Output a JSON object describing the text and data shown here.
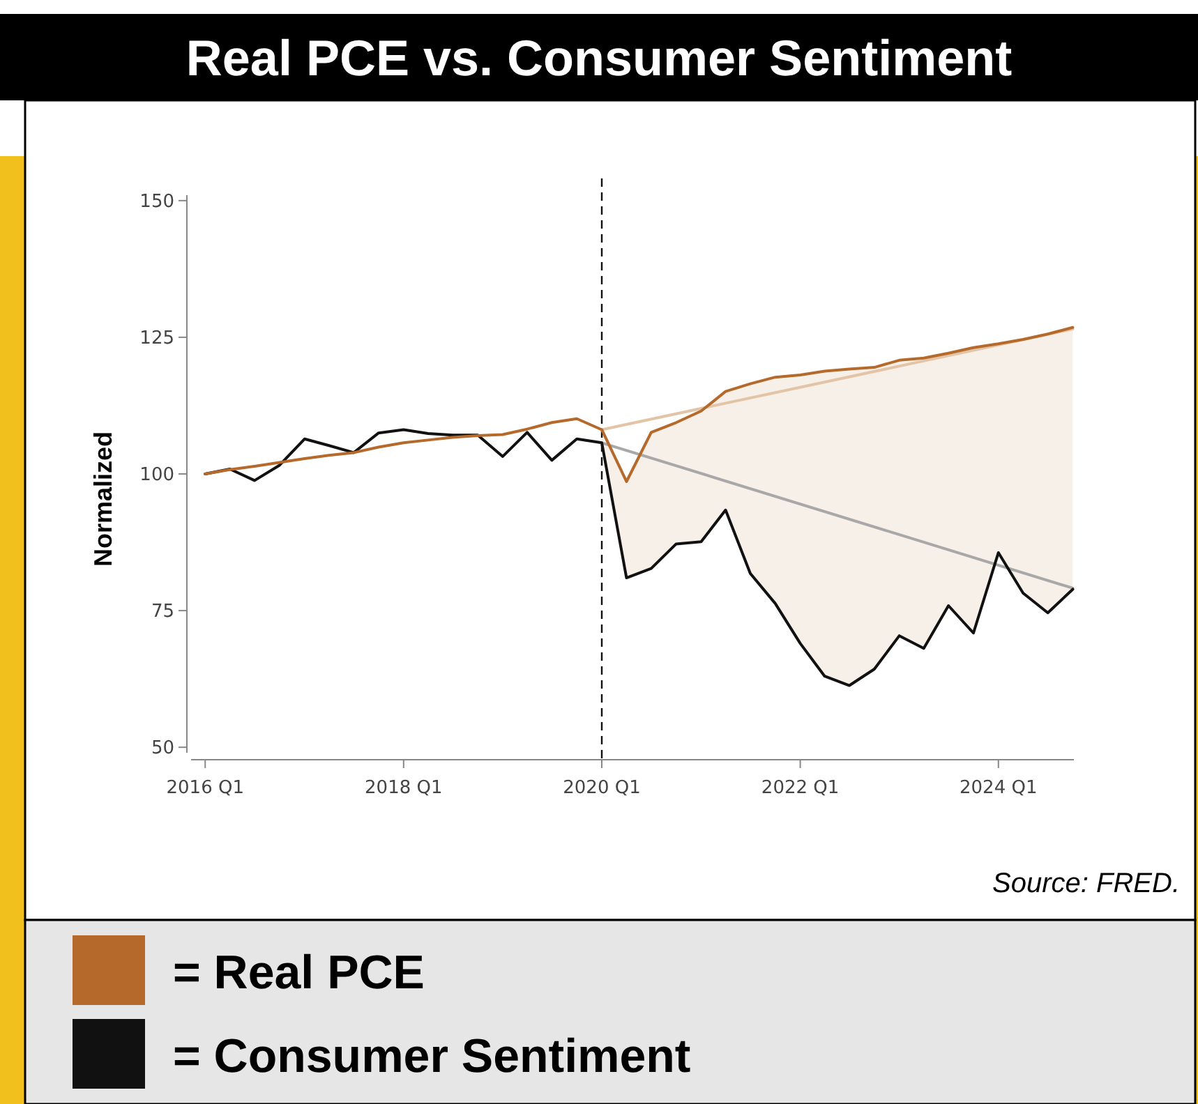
{
  "chart_data": {
    "type": "line",
    "title": "Real PCE vs. Consumer Sentiment",
    "ylabel": "Normalized",
    "x": [
      "2016-01",
      "2016-04",
      "2016-07",
      "2016-10",
      "2017-01",
      "2017-04",
      "2017-07",
      "2017-10",
      "2018-01",
      "2018-04",
      "2018-07",
      "2018-10",
      "2019-01",
      "2019-04",
      "2019-07",
      "2019-10",
      "2020-01",
      "2020-04",
      "2020-07",
      "2020-10",
      "2021-01",
      "2021-04",
      "2021-07",
      "2021-10",
      "2022-01",
      "2022-04",
      "2022-07",
      "2022-10",
      "2023-01",
      "2023-04",
      "2023-07",
      "2023-10",
      "2024-01",
      "2024-04",
      "2024-07",
      "2024-10"
    ],
    "series": [
      {
        "name": "= Real PCE",
        "color": "#b5692a",
        "values": [
          100,
          100.8,
          101.4,
          102.1,
          102.8,
          103.4,
          103.9,
          104.9,
          105.7,
          106.2,
          106.7,
          107.0,
          107.2,
          108.2,
          109.4,
          110.1,
          108.1,
          98.6,
          107.6,
          109.4,
          111.5,
          115.1,
          116.5,
          117.7,
          118.1,
          118.8,
          119.2,
          119.5,
          120.8,
          121.2,
          122.1,
          123.1,
          123.8,
          124.6,
          125.6,
          126.8
        ],
        "lower": [
          null,
          null,
          null,
          null,
          null,
          null,
          null,
          null,
          null,
          null,
          null,
          null,
          null,
          null,
          null,
          null,
          105.7,
          81.0,
          82.7,
          87.2,
          87.6,
          93.4,
          81.8,
          76.3,
          69.0,
          63.0,
          61.3,
          64.3,
          70.4,
          68.1,
          75.9,
          70.9,
          85.6,
          78.2,
          74.6,
          78.9
        ],
        "upper": [
          null,
          null,
          null,
          null,
          null,
          null,
          null,
          null,
          null,
          null,
          null,
          null,
          null,
          null,
          null,
          null,
          108.1,
          98.6,
          107.6,
          109.4,
          111.5,
          115.1,
          116.5,
          117.7,
          118.1,
          118.8,
          119.2,
          119.5,
          120.8,
          121.2,
          122.1,
          123.1,
          123.8,
          124.6,
          125.6,
          126.8
        ]
      },
      {
        "name": "= Consumer Sentiment",
        "color": "#111111",
        "values": [
          100,
          100.9,
          98.8,
          101.6,
          106.4,
          105.2,
          103.9,
          107.5,
          108.1,
          107.4,
          107.1,
          107.1,
          103.2,
          107.6,
          102.5,
          106.4,
          105.7,
          81.0,
          82.7,
          87.2,
          87.6,
          93.4,
          81.8,
          76.3,
          69.0,
          63.0,
          61.3,
          64.3,
          70.4,
          68.1,
          75.9,
          70.9,
          85.6,
          78.2,
          74.6,
          78.9
        ]
      },
      {
        "type": "line",
        "color": "#e3c4a6",
        "x": [
          "2020-01",
          "2024-10"
        ],
        "values": [
          108.1,
          126.5
        ]
      },
      {
        "type": "line",
        "color": "#a8a8a8",
        "x": [
          "2020-01",
          "2024-10"
        ],
        "values": [
          105.7,
          79.1
        ]
      }
    ],
    "xlim": [
      "2015-11-10",
      "2024-10-05"
    ],
    "ylim": [
      49,
      151
    ],
    "xticks": [
      {
        "value": "2016-01",
        "label": "2016 Q1"
      },
      {
        "value": "2018-01",
        "label": "2018 Q1"
      },
      {
        "value": "2020-01",
        "label": "2020 Q1"
      },
      {
        "value": "2022-01",
        "label": "2022 Q1"
      },
      {
        "value": "2024-01",
        "label": "2024 Q1"
      }
    ],
    "yticks": [
      50,
      75,
      100,
      125,
      150
    ],
    "ref_lines": [
      {
        "axis": "x",
        "value": "2020-01",
        "color": "#111111",
        "line_style": "dashed"
      }
    ],
    "annotations": [
      "Source: FRED."
    ],
    "legend": "bottom",
    "grid": false,
    "marker": "none",
    "line_style": "solid"
  }
}
